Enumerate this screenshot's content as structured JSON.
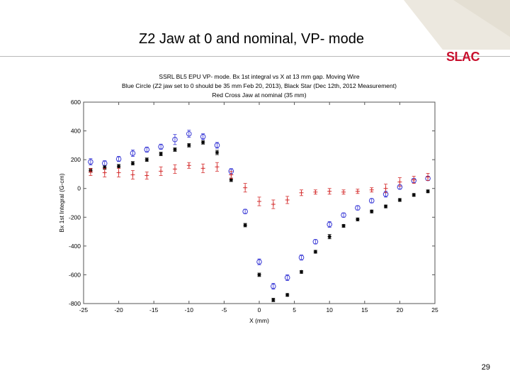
{
  "slide": {
    "title": "Z2 Jaw at 0 and nominal, VP- mode",
    "logo_text": "SLAC",
    "page_number": "29"
  },
  "colors": {
    "blue_series": "#3a3ad6",
    "black_series": "#000000",
    "red_series": "#d42b2b",
    "logo": "#c8102e"
  },
  "chart_data": {
    "type": "scatter",
    "title": [
      "SSRL BL5 EPU VP- mode.  Bx 1st integral vs X at 13 mm gap. Moving Wire",
      "Blue Circle (Z2 jaw set to 0 should be 35 mm Feb 20, 2013), Black Star (Dec 12th, 2012 Measurement)",
      "Red Cross Jaw at nominal (35 mm)"
    ],
    "xlabel": "X (mm)",
    "ylabel": "Bx 1st Integral (G-cm)",
    "xlim": [
      -25,
      25
    ],
    "ylim": [
      -800,
      600
    ],
    "xticks": [
      -25,
      -20,
      -15,
      -10,
      -5,
      0,
      5,
      10,
      15,
      20,
      25
    ],
    "yticks": [
      -800,
      -600,
      -400,
      -200,
      0,
      200,
      400,
      600
    ],
    "grid": false,
    "legend": "none",
    "x": [
      -24,
      -22,
      -20,
      -18,
      -16,
      -14,
      -12,
      -10,
      -8,
      -6,
      -4,
      -2,
      0,
      2,
      4,
      6,
      8,
      10,
      12,
      14,
      16,
      18,
      20,
      22,
      24
    ],
    "series": [
      {
        "marker": "circle",
        "color": "#3a3ad6",
        "values": [
          185,
          175,
          205,
          245,
          270,
          290,
          340,
          380,
          360,
          300,
          120,
          -160,
          -510,
          -680,
          -620,
          -480,
          -370,
          -250,
          -185,
          -135,
          -85,
          -40,
          10,
          55,
          70
        ],
        "errors": [
          22,
          18,
          18,
          22,
          18,
          18,
          35,
          25,
          20,
          20,
          18,
          15,
          20,
          20,
          20,
          18,
          15,
          20,
          15,
          15,
          15,
          20,
          15,
          15,
          15
        ]
      },
      {
        "marker": "star",
        "color": "#000000",
        "values": [
          125,
          145,
          155,
          175,
          200,
          240,
          270,
          300,
          320,
          250,
          60,
          -255,
          -600,
          -775,
          -740,
          -580,
          -440,
          -335,
          -260,
          -215,
          -160,
          -125,
          -80,
          -45,
          -20
        ],
        "errors": [
          12,
          12,
          12,
          12,
          12,
          12,
          12,
          12,
          12,
          15,
          12,
          12,
          12,
          12,
          10,
          10,
          10,
          15,
          10,
          10,
          10,
          10,
          10,
          10,
          10
        ]
      },
      {
        "marker": "cross",
        "color": "#d42b2b",
        "values": [
          115,
          110,
          110,
          95,
          90,
          120,
          135,
          160,
          140,
          150,
          95,
          5,
          -90,
          -110,
          -80,
          -30,
          -25,
          -20,
          -25,
          -20,
          -10,
          0,
          45,
          60,
          80
        ],
        "errors": [
          25,
          30,
          30,
          30,
          25,
          30,
          30,
          20,
          30,
          30,
          25,
          30,
          30,
          30,
          25,
          20,
          15,
          20,
          15,
          15,
          15,
          30,
          30,
          25,
          25
        ]
      }
    ]
  }
}
